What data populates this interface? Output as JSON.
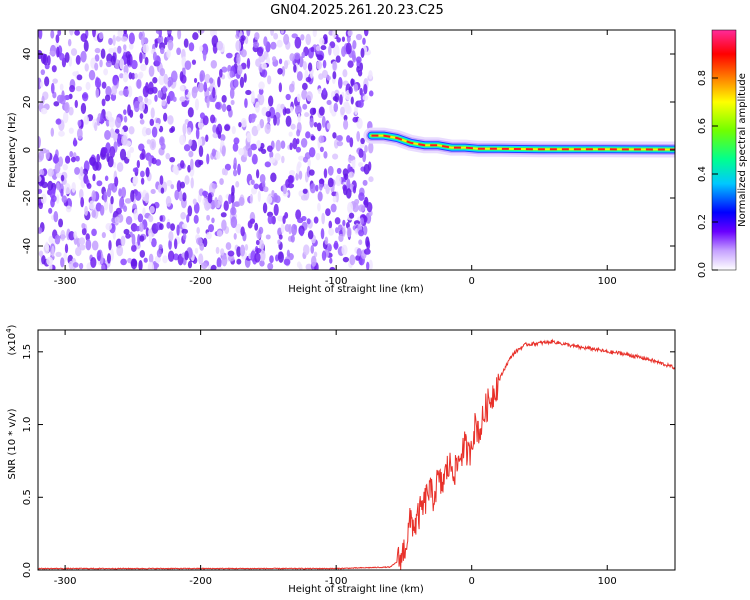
{
  "title": "GN04.2025.261.20.23.C25",
  "chart_data": [
    {
      "type": "heatmap",
      "xlabel": "Height of straight line (km)",
      "ylabel": "Frequency (Hz)",
      "xlim": [
        -320,
        150
      ],
      "ylim": [
        -50,
        50
      ],
      "xticks": [
        -300,
        -200,
        -100,
        0,
        100
      ],
      "yticks": [
        -40,
        -20,
        0,
        20,
        40
      ],
      "colorbar": {
        "label": "Normalized spectral amplitude",
        "range": [
          0,
          1
        ],
        "ticks": [
          "0.0",
          "0.2",
          "0.4",
          "0.6",
          "0.8"
        ],
        "tick_values": [
          0,
          0.2,
          0.4,
          0.6,
          0.8
        ],
        "colors": [
          "#ffffff",
          "#b98cff",
          "#7a2cff",
          "#0000ff",
          "#00c8ff",
          "#00ff80",
          "#80ff00",
          "#ffff00",
          "#ff8000",
          "#ff0000",
          "#ff2090"
        ]
      },
      "noise_region_x": [
        -320,
        -74
      ],
      "ridge": {
        "x": [
          -74,
          -65,
          -55,
          -45,
          -35,
          -25,
          -15,
          -5,
          5,
          20,
          50,
          100,
          150
        ],
        "frequency_hz": [
          6,
          6,
          5,
          3,
          2,
          2,
          1,
          1,
          0.5,
          0.5,
          0.3,
          0.3,
          0.2
        ]
      }
    },
    {
      "type": "line",
      "xlabel": "Height of straight line (km)",
      "ylabel": "SNR (10 * v/v)",
      "y_multiplier_label": "(x10",
      "y_multiplier_exp": "4",
      "xlim": [
        -320,
        150
      ],
      "ylim": [
        0,
        1.65
      ],
      "xticks": [
        -300,
        -200,
        -100,
        0,
        100
      ],
      "yticks": [
        0.0,
        0.5,
        1.0,
        1.5
      ],
      "ytick_labels": [
        "0.0",
        "0.5",
        "1.0",
        "1.5"
      ],
      "color": "#e8312a",
      "x": [
        -320,
        -300,
        -250,
        -200,
        -150,
        -100,
        -60,
        -52,
        -48,
        -45,
        -42,
        -38,
        -35,
        -32,
        -28,
        -25,
        -22,
        -18,
        -15,
        -12,
        -8,
        -5,
        -2,
        0,
        3,
        6,
        10,
        15,
        20,
        25,
        30,
        35,
        40,
        50,
        60,
        70,
        80,
        90,
        100,
        110,
        120,
        130,
        140,
        150
      ],
      "y": [
        0.01,
        0.01,
        0.01,
        0.01,
        0.01,
        0.01,
        0.02,
        0.08,
        0.2,
        0.35,
        0.3,
        0.4,
        0.45,
        0.55,
        0.5,
        0.62,
        0.58,
        0.7,
        0.72,
        0.68,
        0.8,
        0.85,
        0.78,
        0.9,
        1.0,
        0.95,
        1.1,
        1.2,
        1.3,
        1.4,
        1.48,
        1.52,
        1.55,
        1.56,
        1.57,
        1.55,
        1.53,
        1.52,
        1.5,
        1.49,
        1.47,
        1.45,
        1.42,
        1.39
      ]
    }
  ]
}
